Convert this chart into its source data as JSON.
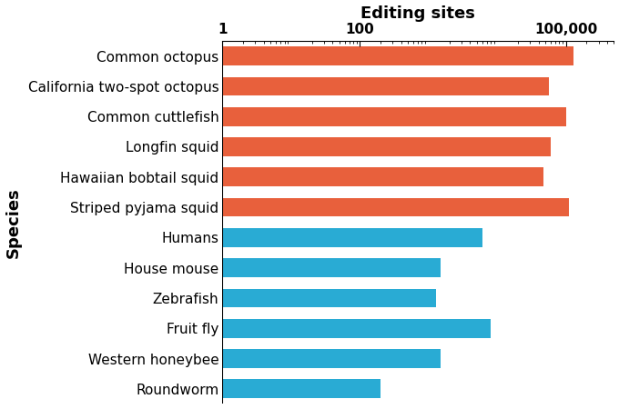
{
  "species": [
    "Common octopus",
    "California two-spot octopus",
    "Common cuttlefish",
    "Longfin squid",
    "Hawaiian bobtail squid",
    "Striped pyjama squid",
    "Humans",
    "House mouse",
    "Zebrafish",
    "Fruit fly",
    "Western honeybee",
    "Roundworm"
  ],
  "values": [
    130000,
    57000,
    100000,
    60000,
    47000,
    110000,
    6000,
    1500,
    1300,
    8000,
    1500,
    200
  ],
  "colors": [
    "#E8603C",
    "#E8603C",
    "#E8603C",
    "#E8603C",
    "#E8603C",
    "#E8603C",
    "#29ABD4",
    "#29ABD4",
    "#29ABD4",
    "#29ABD4",
    "#29ABD4",
    "#29ABD4"
  ],
  "xlabel_top": "Editing sites",
  "ylabel": "Species",
  "xlim": [
    1,
    500000
  ],
  "bar_height": 0.62,
  "xlabel_fontsize": 13,
  "ylabel_fontsize": 13,
  "tick_fontsize": 11,
  "species_fontsize": 11,
  "background_color": "#ffffff"
}
